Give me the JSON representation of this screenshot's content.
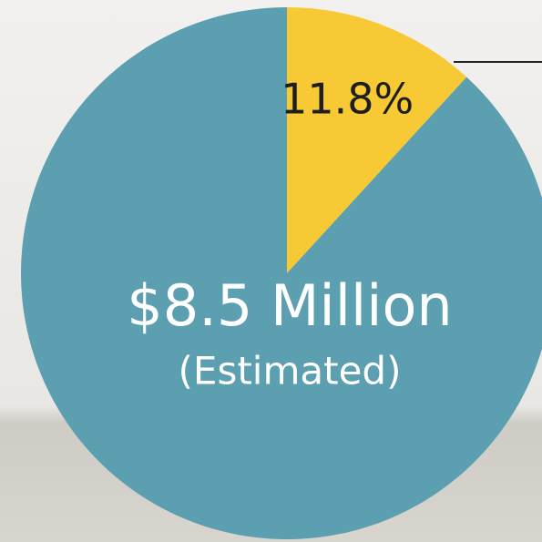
{
  "chart_data": {
    "type": "pie",
    "categories": [
      null,
      null
    ],
    "values": [
      11.8,
      88.2
    ],
    "value_labels": [
      "11.8%",
      null
    ],
    "colors": [
      "#f6c935",
      "#5b9fb1"
    ],
    "annotations": [
      "$8.5 Million",
      "(Estimated)"
    ]
  }
}
